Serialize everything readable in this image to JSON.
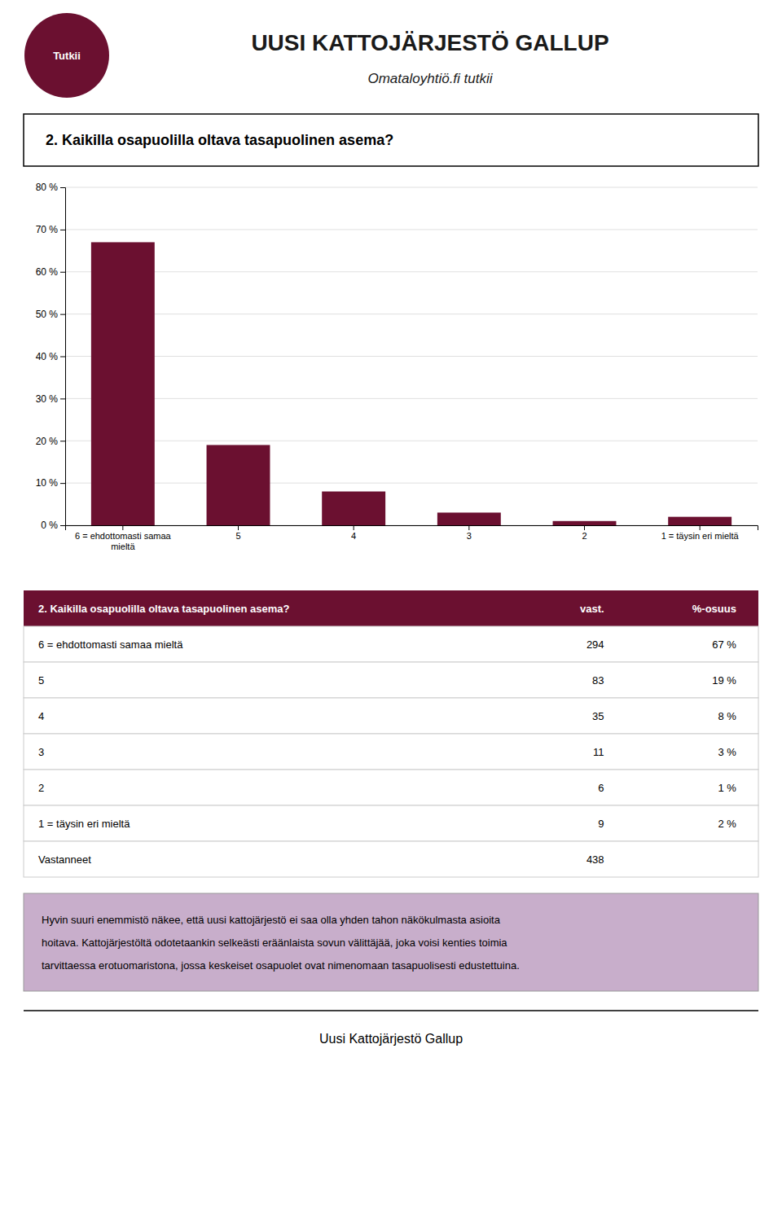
{
  "header": {
    "logo": "Tutkii",
    "title": "UUSI KATTOJÄRJESTÖ GALLUP",
    "subtitle": "Omataloyhtiö.fi tutkii"
  },
  "chart_data": {
    "type": "bar",
    "title": "2. Kaikilla osapuolilla oltava tasapuolinen asema?",
    "categories": [
      "6 = ehdottomasti samaa\nmieltä",
      "5",
      "4",
      "3",
      "2",
      "1 = täysin eri mieltä"
    ],
    "values": [
      67,
      19,
      8,
      3,
      1,
      2
    ],
    "color": "#6B1030",
    "ylim": [
      0,
      80
    ],
    "yticks": [
      {
        "value": 0,
        "label": "0 %"
      },
      {
        "value": 10,
        "label": "10 %"
      },
      {
        "value": 20,
        "label": "20 %"
      },
      {
        "value": 30,
        "label": "30 %"
      },
      {
        "value": 40,
        "label": "40 %"
      },
      {
        "value": 50,
        "label": "50 %"
      },
      {
        "value": 60,
        "label": "60 %"
      },
      {
        "value": 70,
        "label": "70 %"
      },
      {
        "value": 80,
        "label": "80 %"
      }
    ],
    "grid": true
  },
  "table": {
    "columns": [
      "2. Kaikilla osapuolilla oltava tasapuolinen asema?",
      "vast.",
      "%-osuus"
    ],
    "rows": [
      {
        "label": "6 = ehdottomasti samaa mieltä",
        "count": "294",
        "share": "67 %"
      },
      {
        "label": "5",
        "count": "83",
        "share": "19 %"
      },
      {
        "label": "4",
        "count": "35",
        "share": "8 %"
      },
      {
        "label": "3",
        "count": "11",
        "share": "3 %"
      },
      {
        "label": "2",
        "count": "6",
        "share": "1 %"
      },
      {
        "label": "1 = täysin eri mieltä",
        "count": "9",
        "share": "2 %"
      },
      {
        "label": "Vastanneet",
        "count": "438"
      }
    ]
  },
  "comment": [
    "Hyvin suuri enemmistö näkee, että uusi kattojärjestö ei saa olla yhden tahon näkökulmasta asioita",
    "hoitava. Kattojärjestöltä odotetaankin selkeästi eräänlaista sovun välittäjää, joka voisi kenties toimia",
    "tarvittaessa erotuomaristona, jossa keskeiset osapuolet ovat nimenomaan tasapuolisesti edustettuina."
  ],
  "footer": "Uusi Kattojärjestö Gallup"
}
